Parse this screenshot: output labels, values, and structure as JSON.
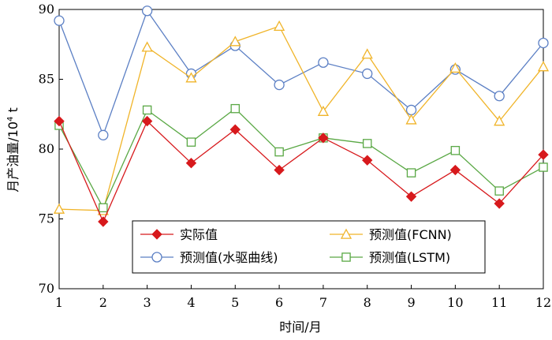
{
  "chart_data": {
    "type": "line",
    "x": [
      1,
      2,
      3,
      4,
      5,
      6,
      7,
      8,
      9,
      10,
      11,
      12
    ],
    "xlabel": "时间/月",
    "ylabel_main": "月产油量/10",
    "ylabel_sup": "4",
    "ylabel_unit": " t",
    "ylim": [
      70,
      90
    ],
    "yticks": [
      70,
      75,
      80,
      85,
      90
    ],
    "xlim": [
      1,
      12
    ],
    "grid": false,
    "legend_position": "bottom-center",
    "series": [
      {
        "name": "实际值",
        "marker": "diamond",
        "color": "#d7191c",
        "values": [
          82.0,
          74.8,
          82.0,
          79.0,
          81.4,
          78.5,
          80.8,
          79.2,
          76.6,
          78.5,
          76.1,
          79.6
        ]
      },
      {
        "name": "预测值(水驱曲线)",
        "marker": "circle",
        "color": "#5b7fc4",
        "values": [
          89.2,
          81.0,
          89.9,
          85.4,
          87.4,
          84.6,
          86.2,
          85.4,
          82.8,
          85.7,
          83.8,
          87.6
        ]
      },
      {
        "name": "预测值(FCNN)",
        "marker": "triangle",
        "color": "#f0b429",
        "values": [
          75.7,
          75.6,
          87.3,
          85.1,
          87.7,
          88.8,
          82.7,
          86.8,
          82.1,
          85.8,
          82.0,
          85.9
        ]
      },
      {
        "name": "预测值(LSTM)",
        "marker": "square",
        "color": "#5aa845",
        "values": [
          81.7,
          75.8,
          82.8,
          80.5,
          82.9,
          79.8,
          80.8,
          80.4,
          78.3,
          79.9,
          77.0,
          78.7
        ]
      }
    ]
  }
}
